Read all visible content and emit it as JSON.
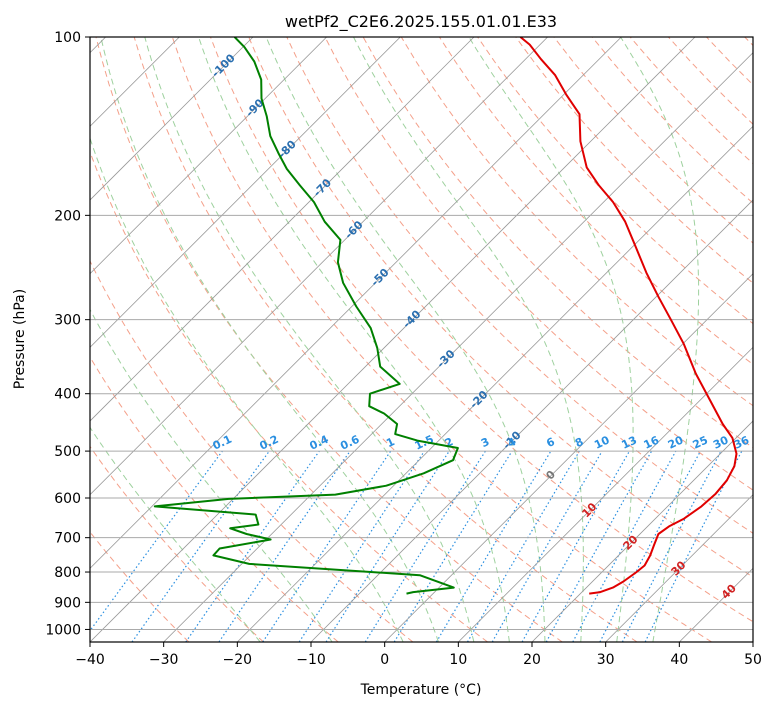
{
  "chart_data": {
    "type": "line",
    "title": "wetPf2_C2E6.2025.155.01.01.E33",
    "xlabel": "Temperature (°C)",
    "ylabel": "Pressure (hPa)",
    "xlim": [
      -40,
      50
    ],
    "ylim": [
      1050,
      100
    ],
    "y_scale": "log",
    "x_ticks": [
      -40,
      -30,
      -20,
      -10,
      0,
      10,
      20,
      30,
      40,
      50
    ],
    "y_ticks": [
      100,
      200,
      300,
      400,
      500,
      600,
      700,
      800,
      900,
      1000
    ],
    "grid": true,
    "skew": true,
    "colors": {
      "temperature": "#e00000",
      "dewpoint": "#008000",
      "isotherm": "#999999",
      "dry_adiabat": "#f4a08a",
      "moist_adiabat": "#9ed19e",
      "mixing_ratio": "#2a8fe0",
      "isotherm_label": "#2a6fb0",
      "positive_label": "#d22222"
    },
    "series": [
      {
        "name": "Temperature",
        "color": "#e00000",
        "points": [
          [
            21.2,
            870
          ],
          [
            22.5,
            865
          ],
          [
            23.6,
            850
          ],
          [
            24.2,
            830
          ],
          [
            24.7,
            800
          ],
          [
            24.9,
            780
          ],
          [
            24.3,
            750
          ],
          [
            23.4,
            720
          ],
          [
            22.5,
            690
          ],
          [
            22.9,
            670
          ],
          [
            23.9,
            650
          ],
          [
            24.6,
            620
          ],
          [
            24.8,
            590
          ],
          [
            24.5,
            560
          ],
          [
            23.6,
            530
          ],
          [
            22.2,
            505
          ],
          [
            19.5,
            475
          ],
          [
            16.3,
            450
          ],
          [
            11.3,
            410
          ],
          [
            5.8,
            370
          ],
          [
            0.2,
            330
          ],
          [
            -4.9,
            300
          ],
          [
            -9.6,
            275
          ],
          [
            -14.6,
            250
          ],
          [
            -19.8,
            225
          ],
          [
            -24.4,
            205
          ],
          [
            -28.7,
            190
          ],
          [
            -32.9,
            178
          ],
          [
            -37.0,
            166
          ],
          [
            -41.4,
            150
          ],
          [
            -45.2,
            135
          ],
          [
            -49.7,
            125
          ],
          [
            -53.8,
            116
          ],
          [
            -57.9,
            109
          ],
          [
            -61.4,
            103
          ],
          [
            -63.7,
            100
          ]
        ]
      },
      {
        "name": "Dewpoint",
        "color": "#008000",
        "points": [
          [
            -3.6,
            870
          ],
          [
            -2.9,
            865
          ],
          [
            2.0,
            850
          ],
          [
            -4.3,
            810
          ],
          [
            -29.0,
            775
          ],
          [
            -35.0,
            750
          ],
          [
            -35.1,
            730
          ],
          [
            -29.4,
            705
          ],
          [
            -33.4,
            690
          ],
          [
            -36.4,
            675
          ],
          [
            -33.1,
            665
          ],
          [
            -34.8,
            640
          ],
          [
            -49.6,
            620
          ],
          [
            -40.6,
            602
          ],
          [
            -26.7,
            592
          ],
          [
            -21.0,
            572
          ],
          [
            -17.6,
            545
          ],
          [
            -15.4,
            518
          ],
          [
            -16.4,
            494
          ],
          [
            -22.9,
            480
          ],
          [
            -26.8,
            468
          ],
          [
            -27.9,
            450
          ],
          [
            -31.1,
            432
          ],
          [
            -34.1,
            420
          ],
          [
            -35.7,
            400
          ],
          [
            -33.0,
            385
          ],
          [
            -38.0,
            360
          ],
          [
            -40.9,
            335
          ],
          [
            -44.5,
            310
          ],
          [
            -49.4,
            285
          ],
          [
            -54.4,
            260
          ],
          [
            -57.9,
            240
          ],
          [
            -60.6,
            220
          ],
          [
            -65.2,
            205
          ],
          [
            -69.3,
            190
          ],
          [
            -73.5,
            178
          ],
          [
            -77.5,
            167
          ],
          [
            -80.8,
            157
          ],
          [
            -84.2,
            147
          ],
          [
            -87.4,
            136
          ],
          [
            -90.5,
            127
          ],
          [
            -93.1,
            118
          ],
          [
            -96.5,
            110
          ],
          [
            -99.8,
            104
          ],
          [
            -102.5,
            100
          ]
        ]
      }
    ],
    "isotherm_labels": [
      "-100",
      "-90",
      "-80",
      "-70",
      "-60",
      "-50",
      "-40",
      "-30",
      "-20",
      "-10",
      "0",
      "10",
      "20",
      "30",
      "40"
    ],
    "mixing_ratio_labels": [
      "0.1",
      "0.2",
      "0.4",
      "0.6",
      "1",
      "1.5",
      "2",
      "3",
      "4",
      "6",
      "8",
      "10",
      "13",
      "16",
      "20",
      "25",
      "30",
      "36"
    ]
  }
}
